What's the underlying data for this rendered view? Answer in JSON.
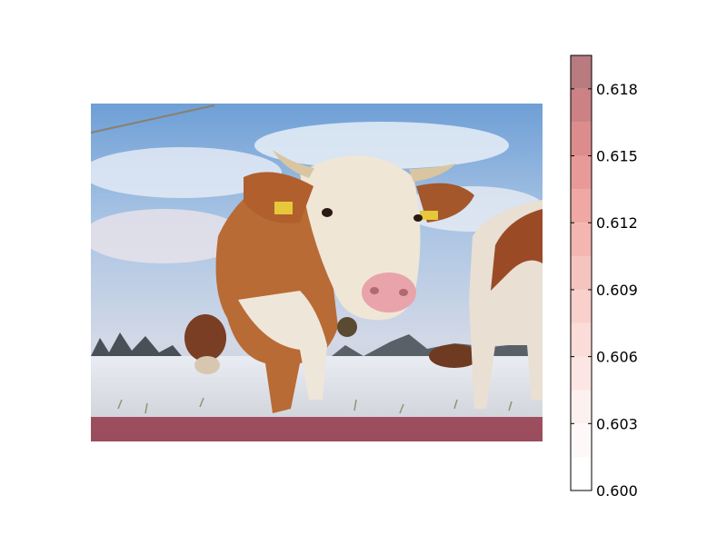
{
  "chart_data": {
    "type": "heatmap",
    "colorbar": {
      "min": 0.6,
      "max": 0.6195,
      "levels": 13,
      "ticks": [
        {
          "value": 0.6,
          "label": "0.600"
        },
        {
          "value": 0.603,
          "label": "0.603"
        },
        {
          "value": 0.606,
          "label": "0.606"
        },
        {
          "value": 0.609,
          "label": "0.609"
        },
        {
          "value": 0.612,
          "label": "0.612"
        },
        {
          "value": 0.615,
          "label": "0.615"
        },
        {
          "value": 0.618,
          "label": "0.618"
        }
      ],
      "colormap": "white-to-red",
      "colors": [
        "#ffffff",
        "#fef9f8",
        "#fdf1ef",
        "#fce6e3",
        "#fbdcd8",
        "#f9d0cb",
        "#f6c4bf",
        "#f3b6b1",
        "#efa8a4",
        "#e89a98",
        "#dd8c8d",
        "#cc8285",
        "#b87b80"
      ]
    },
    "background_image": "photo-of-cows-in-snowy-field",
    "overlay": {
      "region": "bottom-strip",
      "value": 0.6195,
      "color": "#8b2135"
    }
  }
}
